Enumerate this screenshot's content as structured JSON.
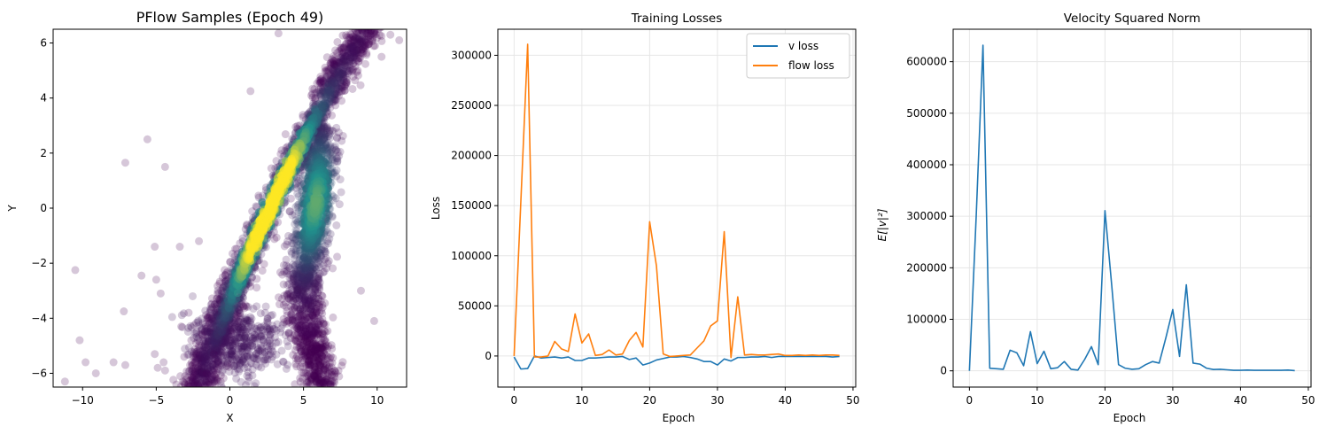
{
  "colors": {
    "v_loss": "#1f77b4",
    "flow_loss": "#ff7f0e",
    "velocity": "#1f77b4",
    "scatter_low": "#440154",
    "scatter_mid": "#21918c",
    "scatter_high": "#fde725",
    "grid": "#e6e6e6"
  },
  "chart_data": [
    {
      "type": "scatter",
      "title": "PFlow Samples (Epoch 49)",
      "xlabel": "X",
      "ylabel": "Y",
      "xlim": [
        -12,
        12
      ],
      "ylim": [
        -6.5,
        6.5
      ],
      "xticks": [
        -10,
        -5,
        0,
        5,
        10
      ],
      "yticks": [
        -6,
        -4,
        -2,
        0,
        2,
        4,
        6
      ],
      "grid": false,
      "colormap": "viridis (point density)",
      "outliers": [
        [
          -10.5,
          -2.25
        ],
        [
          -10.2,
          -4.8
        ],
        [
          -9.8,
          -5.6
        ],
        [
          -11.2,
          -6.3
        ],
        [
          -7.1,
          1.65
        ],
        [
          -5.6,
          2.5
        ],
        [
          -4.4,
          1.5
        ],
        [
          -5.1,
          -1.4
        ],
        [
          -5.0,
          -2.6
        ],
        [
          -4.7,
          -3.1
        ],
        [
          -6.0,
          -2.45
        ],
        [
          -7.2,
          -3.75
        ],
        [
          -7.9,
          -5.6
        ],
        [
          -7.1,
          -5.7
        ],
        [
          -5.1,
          -5.3
        ],
        [
          -4.9,
          -5.8
        ],
        [
          -3.4,
          -1.4
        ],
        [
          -2.1,
          -1.2
        ],
        [
          -2.8,
          -3.8
        ],
        [
          -3.3,
          -4.3
        ],
        [
          -2.6,
          -5.6
        ],
        [
          -3.1,
          -5.4
        ],
        [
          -4.5,
          -5.6
        ],
        [
          -4.4,
          -5.9
        ],
        [
          -3.2,
          -6.3
        ],
        [
          -1.6,
          -6.0
        ],
        [
          -1.1,
          -5.3
        ],
        [
          -2.7,
          -5.7
        ],
        [
          -1.9,
          -4.6
        ],
        [
          -1.3,
          -6.4
        ],
        [
          9.8,
          -4.1
        ],
        [
          10.3,
          5.5
        ],
        [
          10.9,
          6.3
        ],
        [
          11.5,
          6.1
        ],
        [
          3.3,
          6.35
        ],
        [
          1.4,
          4.25
        ],
        [
          -1.2,
          -3.6
        ],
        [
          -0.7,
          -3.3
        ],
        [
          -9.1,
          -6.0
        ],
        [
          8.9,
          -3.0
        ]
      ]
    },
    {
      "type": "line",
      "title": "Training Losses",
      "xlabel": "Epoch",
      "ylabel": "Loss",
      "xlim": [
        -2.4,
        50.4
      ],
      "ylim": [
        -31000,
        326000
      ],
      "xticks": [
        0,
        10,
        20,
        30,
        40,
        50
      ],
      "yticks": [
        0,
        50000,
        100000,
        150000,
        200000,
        250000,
        300000
      ],
      "grid": true,
      "legend": "top-right",
      "x": [
        0,
        1,
        2,
        3,
        4,
        5,
        6,
        7,
        8,
        9,
        10,
        11,
        12,
        13,
        14,
        15,
        16,
        17,
        18,
        19,
        20,
        21,
        22,
        23,
        24,
        25,
        26,
        27,
        28,
        29,
        30,
        31,
        32,
        33,
        34,
        35,
        36,
        37,
        38,
        39,
        40,
        41,
        42,
        43,
        44,
        45,
        46,
        47,
        48
      ],
      "series": [
        {
          "name": "v loss",
          "values": [
            -1000,
            -13000,
            -12500,
            0,
            -2000,
            -1500,
            -1000,
            -2000,
            -1000,
            -4500,
            -4500,
            -2000,
            -2000,
            -1500,
            -1000,
            -1000,
            -500,
            -3500,
            -2000,
            -9000,
            -7000,
            -4000,
            -2500,
            -1000,
            -1000,
            -500,
            -1500,
            -3000,
            -5500,
            -5500,
            -9000,
            -3000,
            -5000,
            -1500,
            -1500,
            -1000,
            -1000,
            -500,
            -1500,
            -500,
            -500,
            -500,
            -500,
            -500,
            -500,
            -500,
            -500,
            -1000,
            -500
          ]
        },
        {
          "name": "flow loss",
          "values": [
            0,
            155000,
            311000,
            -1000,
            -1000,
            0,
            14500,
            7000,
            4500,
            42000,
            13000,
            22000,
            500,
            1500,
            6000,
            1000,
            2000,
            15500,
            23500,
            9000,
            134000,
            90000,
            2000,
            -500,
            0,
            500,
            1000,
            8000,
            15000,
            30000,
            35000,
            124000,
            -1500,
            59000,
            1000,
            1500,
            1000,
            1000,
            1500,
            2000,
            500,
            500,
            1000,
            500,
            1000,
            500,
            1000,
            1000,
            500
          ]
        }
      ]
    },
    {
      "type": "line",
      "title": "Velocity Squared Norm",
      "xlabel": "Epoch",
      "ylabel": "E[|v|²]",
      "xlim": [
        -2.4,
        50.4
      ],
      "ylim": [
        -31500,
        663000
      ],
      "xticks": [
        0,
        10,
        20,
        30,
        40,
        50
      ],
      "yticks": [
        0,
        100000,
        200000,
        300000,
        400000,
        500000,
        600000
      ],
      "grid": true,
      "x": [
        0,
        1,
        2,
        3,
        4,
        5,
        6,
        7,
        8,
        9,
        10,
        11,
        12,
        13,
        14,
        15,
        16,
        17,
        18,
        19,
        20,
        21,
        22,
        23,
        24,
        25,
        26,
        27,
        28,
        29,
        30,
        31,
        32,
        33,
        34,
        35,
        36,
        37,
        38,
        39,
        40,
        41,
        42,
        43,
        44,
        45,
        46,
        47,
        48
      ],
      "series": [
        {
          "values": [
            0,
            300000,
            632000,
            5000,
            4000,
            3000,
            40000,
            35000,
            10000,
            76000,
            14000,
            38000,
            4000,
            6000,
            18000,
            3000,
            1500,
            22000,
            47000,
            12000,
            311000,
            165000,
            12000,
            5000,
            3000,
            4000,
            12000,
            18000,
            15000,
            65000,
            119000,
            28000,
            167000,
            15000,
            13000,
            5000,
            2500,
            3000,
            2000,
            1000,
            1000,
            1500,
            1000,
            1000,
            1000,
            1000,
            1000,
            1500,
            500
          ]
        }
      ]
    }
  ]
}
